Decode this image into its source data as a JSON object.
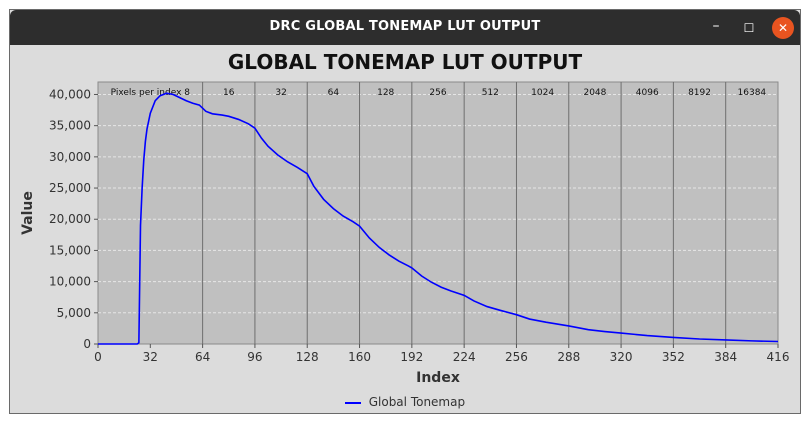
{
  "window": {
    "title": "DRC GLOBAL TONEMAP LUT OUTPUT",
    "minimize_glyph": "–",
    "maximize_glyph": "☐",
    "close_glyph": "✕",
    "close_color": "#e95420"
  },
  "chart_data": {
    "type": "line",
    "title": "GLOBAL TONEMAP LUT OUTPUT",
    "xlabel": "Index",
    "ylabel": "Value",
    "xlim": [
      0,
      416
    ],
    "ylim": [
      0,
      42000
    ],
    "x_ticks": [
      0,
      32,
      64,
      96,
      128,
      160,
      192,
      224,
      256,
      288,
      320,
      352,
      384,
      416
    ],
    "y_ticks": [
      {
        "value": 0,
        "label": "0"
      },
      {
        "value": 5000,
        "label": "5,000"
      },
      {
        "value": 10000,
        "label": "10,000"
      },
      {
        "value": 15000,
        "label": "15,000"
      },
      {
        "value": 20000,
        "label": "20,000"
      },
      {
        "value": 25000,
        "label": "25,000"
      },
      {
        "value": 30000,
        "label": "30,000"
      },
      {
        "value": 35000,
        "label": "35,000"
      },
      {
        "value": 40000,
        "label": "40,000"
      }
    ],
    "grid": true,
    "background": "#c0c0c0",
    "legend_position": "bottom",
    "section_boundaries": [
      64,
      96,
      128,
      160,
      192,
      224,
      256,
      288,
      320,
      352,
      384
    ],
    "section_labels": [
      {
        "start": 0,
        "end": 64,
        "label": "Pixels per index 8"
      },
      {
        "start": 64,
        "end": 96,
        "label": "16"
      },
      {
        "start": 96,
        "end": 128,
        "label": "32"
      },
      {
        "start": 128,
        "end": 160,
        "label": "64"
      },
      {
        "start": 160,
        "end": 192,
        "label": "128"
      },
      {
        "start": 192,
        "end": 224,
        "label": "256"
      },
      {
        "start": 224,
        "end": 256,
        "label": "512"
      },
      {
        "start": 256,
        "end": 288,
        "label": "1024"
      },
      {
        "start": 288,
        "end": 320,
        "label": "2048"
      },
      {
        "start": 320,
        "end": 352,
        "label": "4096"
      },
      {
        "start": 352,
        "end": 384,
        "label": "8192"
      },
      {
        "start": 384,
        "end": 416,
        "label": "16384"
      }
    ],
    "series": [
      {
        "name": "Global Tonemap",
        "color": "#0000ff",
        "points": [
          [
            0,
            0
          ],
          [
            24,
            0
          ],
          [
            25,
            200
          ],
          [
            26,
            19000
          ],
          [
            27,
            25000
          ],
          [
            28,
            29500
          ],
          [
            29,
            32500
          ],
          [
            30,
            34500
          ],
          [
            32,
            37000
          ],
          [
            35,
            39000
          ],
          [
            38,
            39800
          ],
          [
            42,
            40200
          ],
          [
            46,
            40000
          ],
          [
            50,
            39500
          ],
          [
            54,
            39000
          ],
          [
            58,
            38600
          ],
          [
            62,
            38300
          ],
          [
            64,
            37800
          ],
          [
            66,
            37300
          ],
          [
            70,
            36900
          ],
          [
            76,
            36700
          ],
          [
            80,
            36500
          ],
          [
            86,
            36000
          ],
          [
            92,
            35300
          ],
          [
            96,
            34600
          ],
          [
            100,
            33000
          ],
          [
            104,
            31700
          ],
          [
            110,
            30300
          ],
          [
            116,
            29200
          ],
          [
            122,
            28300
          ],
          [
            128,
            27300
          ],
          [
            132,
            25300
          ],
          [
            138,
            23200
          ],
          [
            144,
            21700
          ],
          [
            150,
            20500
          ],
          [
            156,
            19600
          ],
          [
            160,
            18900
          ],
          [
            166,
            17000
          ],
          [
            172,
            15500
          ],
          [
            178,
            14300
          ],
          [
            184,
            13300
          ],
          [
            190,
            12500
          ],
          [
            192,
            12200
          ],
          [
            198,
            10900
          ],
          [
            204,
            9900
          ],
          [
            210,
            9100
          ],
          [
            216,
            8500
          ],
          [
            224,
            7800
          ],
          [
            230,
            6900
          ],
          [
            238,
            6000
          ],
          [
            246,
            5400
          ],
          [
            256,
            4700
          ],
          [
            264,
            4000
          ],
          [
            274,
            3500
          ],
          [
            288,
            2900
          ],
          [
            300,
            2300
          ],
          [
            310,
            2000
          ],
          [
            320,
            1750
          ],
          [
            336,
            1350
          ],
          [
            352,
            1050
          ],
          [
            368,
            800
          ],
          [
            384,
            650
          ],
          [
            400,
            500
          ],
          [
            416,
            400
          ]
        ]
      }
    ]
  }
}
